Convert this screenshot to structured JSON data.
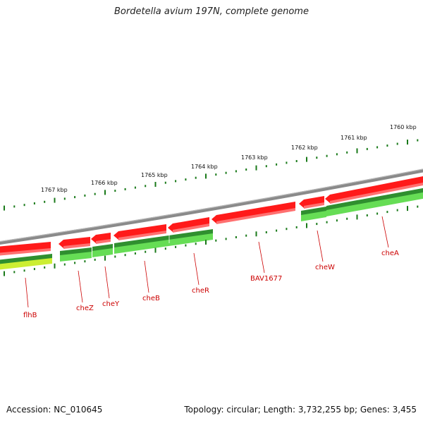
{
  "title": "Bordetella avium 197N, complete genome",
  "footer": {
    "accession": "Accession: NC_010645",
    "summary": "Topology: circular; Length: 3,732,255 bp; Genes: 3,455"
  },
  "scale_labels": [
    "1767 kbp",
    "1766 kbp",
    "1765 kbp",
    "1764 kbp",
    "1763 kbp",
    "1762 kbp",
    "1761 kbp",
    "1760 kbp"
  ],
  "gene_labels": [
    "flhB",
    "cheZ",
    "cheY",
    "cheB",
    "cheR",
    "BAV1677",
    "cheW",
    "cheA"
  ],
  "colors": {
    "backbone": "#8a8a8a",
    "cds": "#ff1a1a",
    "cds_dark": "#c00000",
    "gene_track_dark": "#2f8f2f",
    "gene_track_light": "#66dd55",
    "gene_track_yellow": "#ccee33",
    "tick": "#1a7a1a",
    "label": "#cc0000"
  }
}
